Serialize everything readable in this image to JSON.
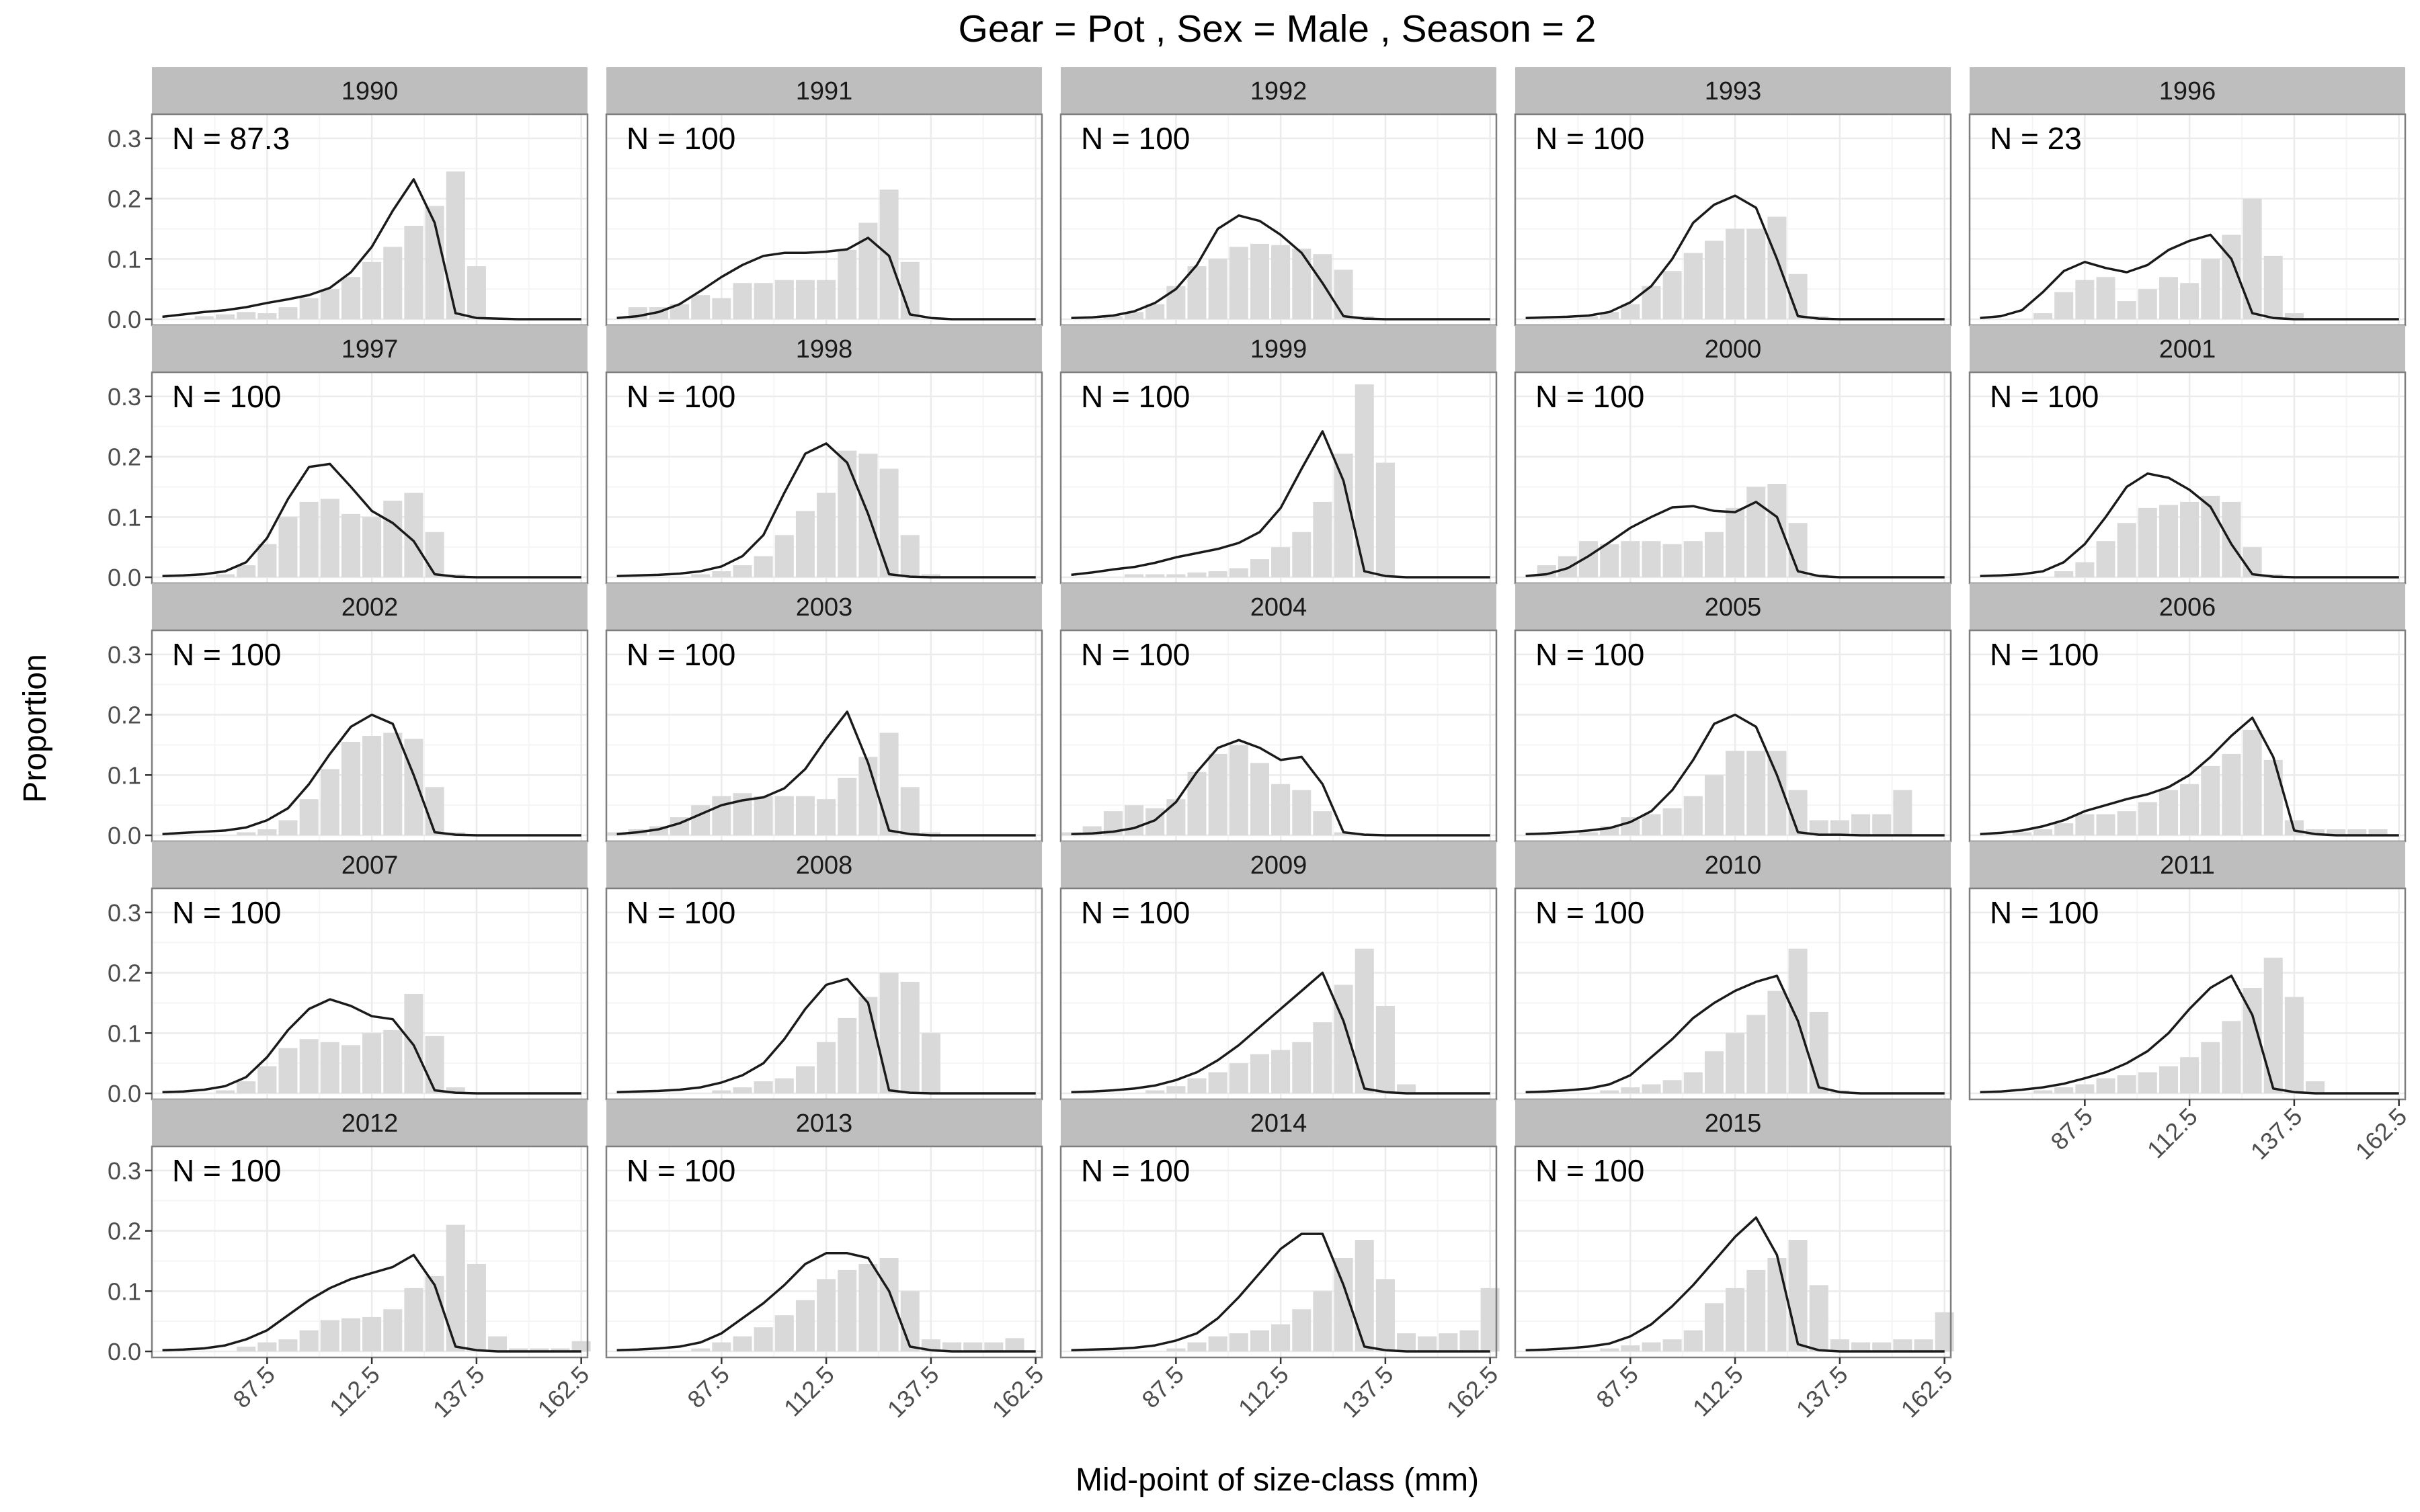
{
  "chart_data": {
    "type": "bar",
    "title": "Gear = Pot , Sex = Male , Season = 2",
    "xlabel": "Mid-point of size-class (mm)",
    "ylabel": "Proportion",
    "ylim": [
      -0.01,
      0.34
    ],
    "xlim": [
      60,
      164
    ],
    "xticks": [
      "87.5",
      "112.5",
      "137.5",
      "162.5"
    ],
    "yticks": [
      "0.0",
      "0.1",
      "0.2",
      "0.3"
    ],
    "size_classes": [
      62.5,
      67.5,
      72.5,
      77.5,
      82.5,
      87.5,
      92.5,
      97.5,
      102.5,
      107.5,
      112.5,
      117.5,
      122.5,
      127.5,
      132.5,
      137.5,
      142.5,
      147.5,
      152.5,
      157.5,
      162.5
    ],
    "grid": true,
    "series_note": "bars = observed proportions, line = predicted proportions",
    "panels": [
      {
        "year": "1990",
        "n_label": "N = 87.3",
        "observed": [
          0,
          0,
          0.005,
          0.008,
          0.012,
          0.01,
          0.02,
          0.035,
          0.05,
          0.07,
          0.095,
          0.12,
          0.155,
          0.188,
          0.245,
          0.088,
          0.0,
          0,
          0,
          0,
          0
        ],
        "predicted": [
          0.004,
          0.008,
          0.012,
          0.015,
          0.02,
          0.027,
          0.033,
          0.04,
          0.052,
          0.078,
          0.12,
          0.18,
          0.232,
          0.16,
          0.01,
          0.002,
          0.001,
          0,
          0,
          0,
          0
        ]
      },
      {
        "year": "1991",
        "n_label": "N = 100",
        "observed": [
          0,
          0.02,
          0.02,
          0.025,
          0.04,
          0.035,
          0.06,
          0.06,
          0.065,
          0.065,
          0.065,
          0.115,
          0.16,
          0.215,
          0.095,
          0.0,
          0,
          0,
          0,
          0,
          0
        ],
        "predicted": [
          0.002,
          0.005,
          0.012,
          0.025,
          0.047,
          0.07,
          0.09,
          0.105,
          0.11,
          0.11,
          0.112,
          0.116,
          0.135,
          0.105,
          0.008,
          0.002,
          0,
          0,
          0,
          0,
          0
        ]
      },
      {
        "year": "1992",
        "n_label": "N = 100",
        "observed": [
          0,
          0,
          0.005,
          0.012,
          0.025,
          0.055,
          0.088,
          0.1,
          0.12,
          0.125,
          0.123,
          0.117,
          0.108,
          0.082,
          0.005,
          0,
          0,
          0,
          0,
          0,
          0
        ],
        "predicted": [
          0.002,
          0.003,
          0.006,
          0.013,
          0.027,
          0.05,
          0.09,
          0.15,
          0.172,
          0.163,
          0.14,
          0.11,
          0.06,
          0.005,
          0.001,
          0,
          0,
          0,
          0,
          0,
          0
        ]
      },
      {
        "year": "1993",
        "n_label": "N = 100",
        "observed": [
          0,
          0,
          0,
          0.005,
          0.012,
          0.025,
          0.055,
          0.08,
          0.11,
          0.13,
          0.15,
          0.15,
          0.17,
          0.075,
          0.005,
          0,
          0,
          0,
          0,
          0,
          0
        ],
        "predicted": [
          0.002,
          0.003,
          0.004,
          0.006,
          0.012,
          0.028,
          0.055,
          0.1,
          0.16,
          0.19,
          0.205,
          0.185,
          0.1,
          0.005,
          0.001,
          0,
          0,
          0,
          0,
          0,
          0
        ]
      },
      {
        "year": "1996",
        "n_label": "N = 23",
        "observed": [
          0,
          0,
          0,
          0.01,
          0.045,
          0.065,
          0.07,
          0.03,
          0.05,
          0.07,
          0.06,
          0.1,
          0.14,
          0.2,
          0.105,
          0.01,
          0,
          0,
          0,
          0,
          0
        ],
        "predicted": [
          0.002,
          0.005,
          0.015,
          0.045,
          0.08,
          0.095,
          0.085,
          0.078,
          0.09,
          0.115,
          0.13,
          0.14,
          0.1,
          0.01,
          0.002,
          0,
          0,
          0,
          0,
          0,
          0
        ]
      },
      {
        "year": "1997",
        "n_label": "N = 100",
        "observed": [
          0,
          0,
          0,
          0.005,
          0.02,
          0.055,
          0.1,
          0.125,
          0.13,
          0.105,
          0.1,
          0.127,
          0.14,
          0.075,
          0.005,
          0,
          0,
          0,
          0,
          0,
          0
        ],
        "predicted": [
          0.002,
          0.003,
          0.005,
          0.01,
          0.025,
          0.065,
          0.13,
          0.183,
          0.188,
          0.15,
          0.11,
          0.09,
          0.06,
          0.005,
          0.001,
          0,
          0,
          0,
          0,
          0,
          0
        ]
      },
      {
        "year": "1998",
        "n_label": "N = 100",
        "observed": [
          0,
          0,
          0,
          0,
          0.005,
          0.01,
          0.02,
          0.035,
          0.07,
          0.11,
          0.14,
          0.21,
          0.205,
          0.18,
          0.07,
          0.005,
          0,
          0,
          0,
          0,
          0
        ],
        "predicted": [
          0.002,
          0.003,
          0.004,
          0.006,
          0.01,
          0.018,
          0.035,
          0.07,
          0.14,
          0.205,
          0.222,
          0.19,
          0.105,
          0.005,
          0.001,
          0,
          0,
          0,
          0,
          0,
          0
        ]
      },
      {
        "year": "1999",
        "n_label": "N = 100",
        "observed": [
          0,
          0,
          0,
          0.005,
          0.005,
          0.005,
          0.008,
          0.01,
          0.015,
          0.03,
          0.05,
          0.075,
          0.125,
          0.205,
          0.32,
          0.19,
          0,
          0,
          0,
          0,
          0
        ],
        "predicted": [
          0.004,
          0.008,
          0.013,
          0.017,
          0.024,
          0.033,
          0.04,
          0.047,
          0.057,
          0.075,
          0.115,
          0.18,
          0.242,
          0.16,
          0.01,
          0.002,
          0,
          0,
          0,
          0,
          0
        ]
      },
      {
        "year": "2000",
        "n_label": "N = 100",
        "observed": [
          0,
          0.02,
          0.035,
          0.06,
          0.055,
          0.06,
          0.06,
          0.055,
          0.06,
          0.075,
          0.115,
          0.15,
          0.155,
          0.09,
          0.005,
          0,
          0,
          0,
          0,
          0,
          0
        ],
        "predicted": [
          0.002,
          0.005,
          0.015,
          0.035,
          0.058,
          0.082,
          0.1,
          0.116,
          0.118,
          0.11,
          0.108,
          0.125,
          0.1,
          0.01,
          0.002,
          0,
          0,
          0,
          0,
          0,
          0
        ]
      },
      {
        "year": "2001",
        "n_label": "N = 100",
        "observed": [
          0,
          0,
          0,
          0,
          0.01,
          0.025,
          0.06,
          0.09,
          0.115,
          0.12,
          0.125,
          0.135,
          0.125,
          0.05,
          0.005,
          0,
          0,
          0,
          0,
          0,
          0
        ],
        "predicted": [
          0.002,
          0.003,
          0.005,
          0.01,
          0.025,
          0.055,
          0.1,
          0.15,
          0.172,
          0.165,
          0.145,
          0.117,
          0.055,
          0.005,
          0.001,
          0,
          0,
          0,
          0,
          0,
          0
        ]
      },
      {
        "year": "2002",
        "n_label": "N = 100",
        "observed": [
          0,
          0,
          0,
          0,
          0.005,
          0.01,
          0.025,
          0.06,
          0.11,
          0.155,
          0.165,
          0.17,
          0.16,
          0.08,
          0.005,
          0,
          0,
          0,
          0,
          0,
          0
        ],
        "predicted": [
          0.002,
          0.004,
          0.006,
          0.008,
          0.013,
          0.025,
          0.045,
          0.085,
          0.135,
          0.18,
          0.2,
          0.185,
          0.1,
          0.005,
          0.001,
          0,
          0,
          0,
          0,
          0,
          0
        ]
      },
      {
        "year": "2003",
        "n_label": "N = 100",
        "observed": [
          0.005,
          0.01,
          0.015,
          0.03,
          0.05,
          0.065,
          0.07,
          0.065,
          0.065,
          0.065,
          0.06,
          0.095,
          0.13,
          0.17,
          0.08,
          0.005,
          0,
          0,
          0,
          0,
          0
        ],
        "predicted": [
          0.002,
          0.005,
          0.01,
          0.02,
          0.035,
          0.05,
          0.058,
          0.063,
          0.078,
          0.11,
          0.16,
          0.205,
          0.12,
          0.008,
          0.002,
          0,
          0,
          0,
          0,
          0,
          0
        ]
      },
      {
        "year": "2004",
        "n_label": "N = 100",
        "observed": [
          0.005,
          0.015,
          0.04,
          0.05,
          0.045,
          0.06,
          0.105,
          0.135,
          0.15,
          0.12,
          0.085,
          0.075,
          0.04,
          0.005,
          0,
          0,
          0,
          0,
          0,
          0,
          0
        ],
        "predicted": [
          0.002,
          0.003,
          0.006,
          0.012,
          0.025,
          0.055,
          0.105,
          0.145,
          0.158,
          0.145,
          0.125,
          0.13,
          0.085,
          0.005,
          0.001,
          0,
          0,
          0,
          0,
          0,
          0
        ]
      },
      {
        "year": "2005",
        "n_label": "N = 100",
        "observed": [
          0,
          0,
          0,
          0.005,
          0.015,
          0.03,
          0.035,
          0.045,
          0.065,
          0.1,
          0.14,
          0.14,
          0.14,
          0.075,
          0.025,
          0.025,
          0.035,
          0.035,
          0.075,
          0,
          0
        ],
        "predicted": [
          0.002,
          0.003,
          0.005,
          0.008,
          0.012,
          0.022,
          0.04,
          0.075,
          0.125,
          0.185,
          0.2,
          0.18,
          0.1,
          0.005,
          0.001,
          0.001,
          0,
          0,
          0,
          0,
          0
        ]
      },
      {
        "year": "2006",
        "n_label": "N = 100",
        "observed": [
          0,
          0,
          0.005,
          0.01,
          0.02,
          0.035,
          0.035,
          0.04,
          0.055,
          0.075,
          0.085,
          0.115,
          0.135,
          0.175,
          0.125,
          0.025,
          0.01,
          0.01,
          0.01,
          0.01,
          0
        ],
        "predicted": [
          0.002,
          0.004,
          0.008,
          0.015,
          0.025,
          0.04,
          0.05,
          0.06,
          0.068,
          0.08,
          0.1,
          0.13,
          0.165,
          0.195,
          0.13,
          0.008,
          0.002,
          0,
          0,
          0,
          0
        ]
      },
      {
        "year": "2007",
        "n_label": "N = 100",
        "observed": [
          0,
          0,
          0,
          0.005,
          0.02,
          0.045,
          0.075,
          0.09,
          0.085,
          0.08,
          0.1,
          0.105,
          0.165,
          0.095,
          0.01,
          0,
          0,
          0,
          0,
          0,
          0
        ],
        "predicted": [
          0.002,
          0.003,
          0.006,
          0.012,
          0.027,
          0.06,
          0.105,
          0.14,
          0.156,
          0.145,
          0.128,
          0.123,
          0.08,
          0.005,
          0.001,
          0,
          0,
          0,
          0,
          0,
          0
        ]
      },
      {
        "year": "2008",
        "n_label": "N = 100",
        "observed": [
          0,
          0,
          0,
          0,
          0,
          0.005,
          0.01,
          0.02,
          0.025,
          0.045,
          0.085,
          0.125,
          0.16,
          0.2,
          0.185,
          0.1,
          0,
          0,
          0,
          0,
          0
        ],
        "predicted": [
          0.002,
          0.003,
          0.004,
          0.006,
          0.01,
          0.018,
          0.03,
          0.05,
          0.09,
          0.14,
          0.18,
          0.19,
          0.15,
          0.005,
          0.001,
          0,
          0,
          0,
          0,
          0,
          0
        ]
      },
      {
        "year": "2009",
        "n_label": "N = 100",
        "observed": [
          0,
          0,
          0,
          0,
          0.005,
          0.012,
          0.025,
          0.035,
          0.05,
          0.065,
          0.072,
          0.085,
          0.118,
          0.18,
          0.24,
          0.145,
          0.015,
          0,
          0,
          0,
          0
        ],
        "predicted": [
          0.002,
          0.003,
          0.005,
          0.008,
          0.013,
          0.022,
          0.035,
          0.055,
          0.08,
          0.11,
          0.14,
          0.17,
          0.2,
          0.12,
          0.008,
          0.002,
          0,
          0,
          0,
          0,
          0
        ]
      },
      {
        "year": "2010",
        "n_label": "N = 100",
        "observed": [
          0,
          0,
          0,
          0,
          0.005,
          0.01,
          0.015,
          0.022,
          0.035,
          0.07,
          0.1,
          0.13,
          0.17,
          0.24,
          0.135,
          0.005,
          0,
          0,
          0,
          0,
          0
        ],
        "predicted": [
          0.002,
          0.003,
          0.005,
          0.008,
          0.015,
          0.03,
          0.06,
          0.09,
          0.125,
          0.15,
          0.17,
          0.185,
          0.195,
          0.12,
          0.01,
          0.002,
          0,
          0,
          0,
          0,
          0
        ]
      },
      {
        "year": "2011",
        "n_label": "N = 100",
        "observed": [
          0,
          0,
          0,
          0.005,
          0.01,
          0.015,
          0.025,
          0.03,
          0.035,
          0.045,
          0.06,
          0.085,
          0.12,
          0.175,
          0.225,
          0.16,
          0.02,
          0,
          0,
          0,
          0
        ],
        "predicted": [
          0.002,
          0.003,
          0.006,
          0.01,
          0.016,
          0.025,
          0.035,
          0.05,
          0.07,
          0.1,
          0.14,
          0.175,
          0.195,
          0.13,
          0.008,
          0.002,
          0,
          0,
          0,
          0,
          0
        ]
      },
      {
        "year": "2012",
        "n_label": "N = 100",
        "observed": [
          0,
          0,
          0,
          0,
          0.008,
          0.015,
          0.02,
          0.035,
          0.052,
          0.055,
          0.057,
          0.07,
          0.105,
          0.125,
          0.21,
          0.145,
          0.025,
          0.005,
          0.005,
          0.005,
          0.017
        ],
        "predicted": [
          0.002,
          0.003,
          0.005,
          0.01,
          0.02,
          0.035,
          0.06,
          0.085,
          0.105,
          0.12,
          0.13,
          0.14,
          0.16,
          0.11,
          0.008,
          0.002,
          0,
          0,
          0,
          0,
          0
        ]
      },
      {
        "year": "2013",
        "n_label": "N = 100",
        "observed": [
          0,
          0,
          0,
          0,
          0.005,
          0.015,
          0.025,
          0.04,
          0.06,
          0.085,
          0.12,
          0.135,
          0.145,
          0.155,
          0.1,
          0.02,
          0.015,
          0.015,
          0.015,
          0.022,
          0
        ],
        "predicted": [
          0.002,
          0.003,
          0.005,
          0.008,
          0.015,
          0.03,
          0.055,
          0.08,
          0.11,
          0.145,
          0.163,
          0.163,
          0.155,
          0.1,
          0.008,
          0.002,
          0,
          0,
          0,
          0,
          0
        ]
      },
      {
        "year": "2014",
        "n_label": "N = 100",
        "observed": [
          0,
          0,
          0,
          0,
          0,
          0.005,
          0.015,
          0.025,
          0.03,
          0.035,
          0.045,
          0.07,
          0.1,
          0.155,
          0.185,
          0.12,
          0.03,
          0.025,
          0.03,
          0.035,
          0.105
        ],
        "predicted": [
          0.002,
          0.003,
          0.004,
          0.006,
          0.01,
          0.018,
          0.03,
          0.055,
          0.09,
          0.13,
          0.17,
          0.195,
          0.195,
          0.11,
          0.008,
          0.002,
          0,
          0,
          0,
          0,
          0
        ]
      },
      {
        "year": "2015",
        "n_label": "N = 100",
        "observed": [
          0,
          0,
          0,
          0,
          0.005,
          0.01,
          0.015,
          0.02,
          0.035,
          0.08,
          0.105,
          0.135,
          0.155,
          0.185,
          0.11,
          0.02,
          0.015,
          0.015,
          0.02,
          0.02,
          0.065
        ],
        "predicted": [
          0.002,
          0.003,
          0.005,
          0.008,
          0.013,
          0.025,
          0.045,
          0.075,
          0.11,
          0.15,
          0.19,
          0.222,
          0.16,
          0.012,
          0.002,
          0,
          0,
          0,
          0,
          0,
          0
        ]
      }
    ]
  },
  "colors": {
    "bar": "#d9d9d9",
    "line": "#1a1a1a",
    "strip_bg": "#bebebe",
    "panel_border": "#7f7f7f",
    "grid_major": "#ebebeb",
    "grid_minor": "#f5f5f5"
  }
}
